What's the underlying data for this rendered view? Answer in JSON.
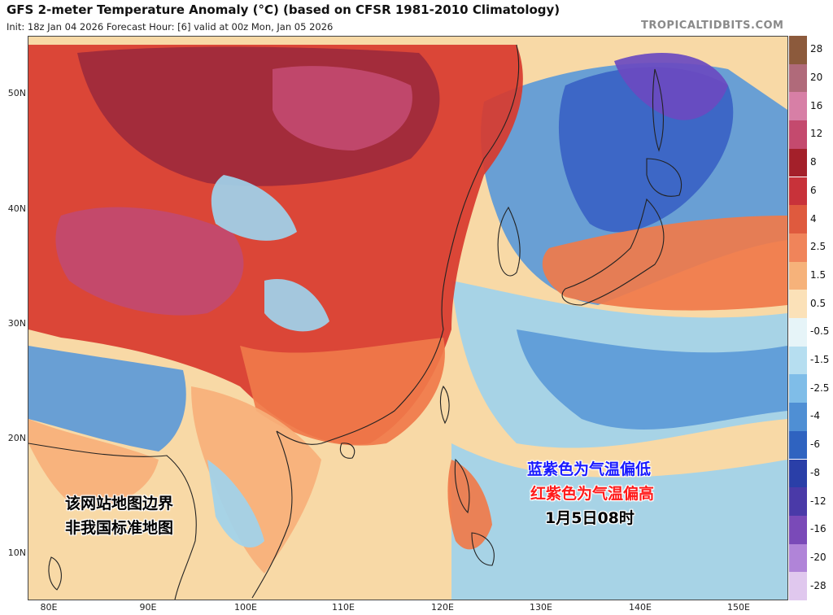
{
  "header": {
    "title": "GFS 2-meter Temperature Anomaly (°C) (based on CFSR 1981-2010 Climatology)",
    "subtitle": "Init: 18z Jan 04 2026   Forecast Hour: [6]   valid at 00z Mon, Jan 05 2026",
    "brand": "TROPICALTIDBITS.COM"
  },
  "axes": {
    "lat_labels": [
      "50N",
      "40N",
      "30N",
      "20N",
      "10N"
    ],
    "lon_labels": [
      "80E",
      "90E",
      "100E",
      "110E",
      "120E",
      "130E",
      "140E",
      "150E"
    ]
  },
  "colorbar": {
    "levels": [
      "28",
      "20",
      "16",
      "12",
      "8",
      "6",
      "4",
      "2.5",
      "1.5",
      "0.5",
      "-0.5",
      "-1.5",
      "-2.5",
      "-4",
      "-6",
      "-8",
      "-12",
      "-16",
      "-20",
      "-28"
    ],
    "colors": [
      "#8c5a3c",
      "#b06a7a",
      "#d77fa6",
      "#c44a6e",
      "#a4202a",
      "#c8323a",
      "#df5a3e",
      "#f0845a",
      "#f6b27a",
      "#fbe1b8",
      "#e6f4f8",
      "#b6def0",
      "#7fbde8",
      "#4f8fd4",
      "#2f63c0",
      "#2a3fa8",
      "#4a3aa8",
      "#7a4ab8",
      "#b084d8",
      "#e0c8ee"
    ]
  },
  "map": {
    "colors": {
      "hot_dark": "#9e2a3c",
      "hot_mag": "#c24a70",
      "hot": "#d83a2e",
      "warm": "#f07a4a",
      "mild": "#f7b07a",
      "neutral": "#f7d9a6",
      "cool": "#9fd3ec",
      "cold": "#5c9ad8",
      "cold_dark": "#3a62c4",
      "cold_purple": "#6a4ac0",
      "land_outline": "#222222"
    }
  },
  "annotations": {
    "disclaimer_line1": "该网站地图边界",
    "disclaimer_line2": "非我国标准地图",
    "legend_blue": "蓝紫色为气温偏低",
    "legend_red": "红紫色为气温偏高",
    "valid_time": "1月5日08时"
  }
}
